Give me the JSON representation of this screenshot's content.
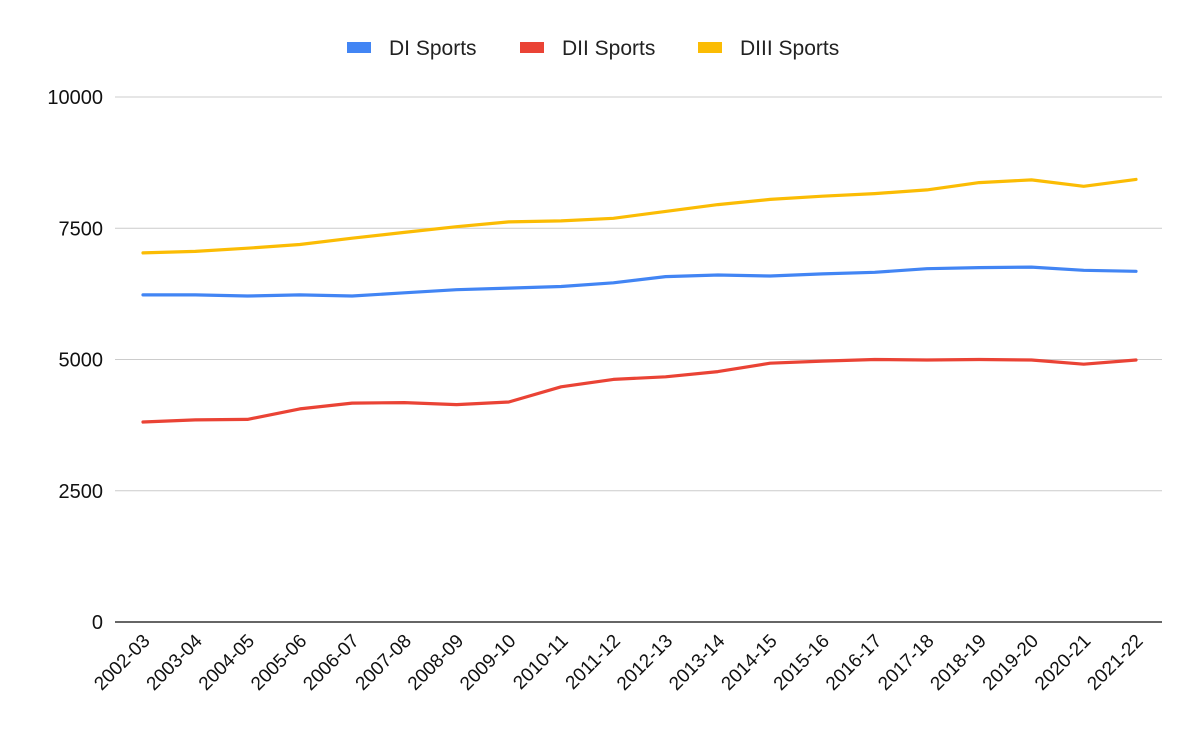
{
  "chart_data": {
    "type": "line",
    "title": "",
    "xlabel": "",
    "ylabel": "",
    "ylim": [
      0,
      10000
    ],
    "yticks": [
      "0",
      "2500",
      "5000",
      "7500",
      "10000"
    ],
    "ytick_values": [
      0,
      2500,
      5000,
      7500,
      10000
    ],
    "grid": true,
    "legend_position": "top-center",
    "categories": [
      "2002-03",
      "2003-04",
      "2004-05",
      "2005-06",
      "2006-07",
      "2007-08",
      "2008-09",
      "2009-10",
      "2010-11",
      "2011-12",
      "2012-13",
      "2013-14",
      "2014-15",
      "2015-16",
      "2016-17",
      "2017-18",
      "2018-19",
      "2019-20",
      "2020-21",
      "2021-22"
    ],
    "series": [
      {
        "name": "DI Sports",
        "color": "#4285f4",
        "values": [
          6230,
          6230,
          6210,
          6230,
          6210,
          6270,
          6330,
          6360,
          6390,
          6460,
          6580,
          6610,
          6590,
          6630,
          6660,
          6730,
          6750,
          6760,
          6700,
          6680
        ]
      },
      {
        "name": "DII Sports",
        "color": "#ea4335",
        "values": [
          3810,
          3850,
          3860,
          4060,
          4170,
          4180,
          4140,
          4190,
          4480,
          4620,
          4670,
          4770,
          4930,
          4970,
          5000,
          4990,
          5000,
          4990,
          4910,
          4990
        ]
      },
      {
        "name": "DIII Sports",
        "color": "#fbbc04",
        "values": [
          7030,
          7060,
          7120,
          7190,
          7310,
          7420,
          7530,
          7620,
          7640,
          7690,
          7820,
          7950,
          8050,
          8110,
          8160,
          8230,
          8370,
          8420,
          8300,
          8430
        ]
      }
    ]
  }
}
